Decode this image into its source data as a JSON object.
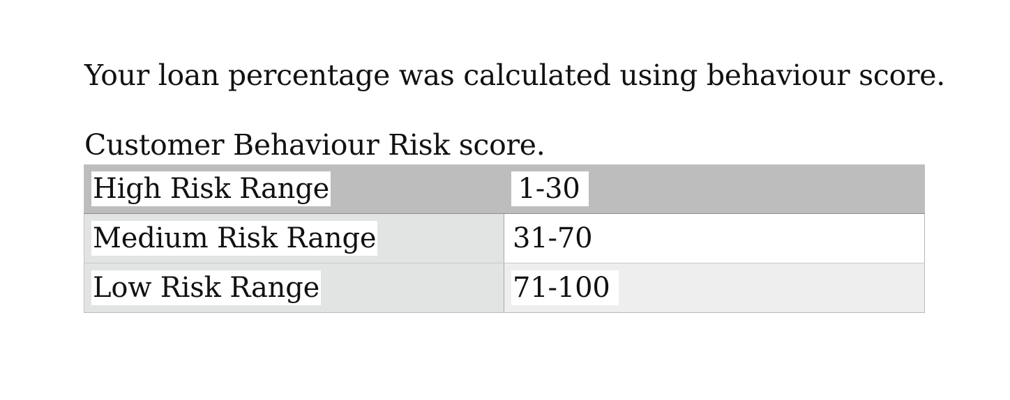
{
  "document": {
    "intro": "Your loan percentage was calculated using behaviour score.",
    "caption": "Customer Behaviour Risk score.",
    "table": {
      "rows": [
        {
          "label": "High Risk Range",
          "value": "1-30"
        },
        {
          "label": "Medium Risk Range",
          "value": "31-70"
        },
        {
          "label": "Low Risk Range",
          "value": "71-100"
        }
      ]
    }
  },
  "colors": {
    "header_row": "#bcbdbc",
    "label_column": "#e2e3e3",
    "text_highlight": "#ffffff",
    "alt_row": "#eeeeee"
  }
}
